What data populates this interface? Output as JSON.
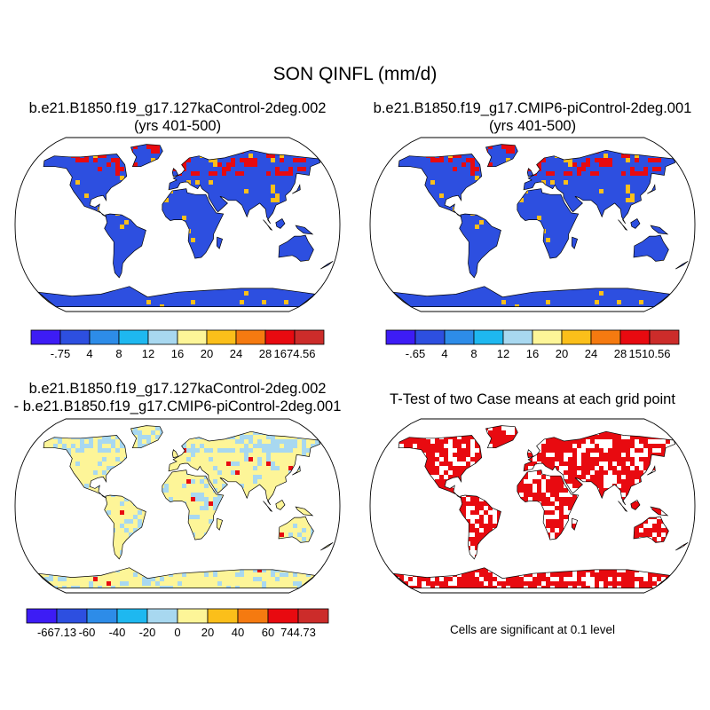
{
  "figure": {
    "title": "SON QINFL (mm/d)",
    "panels": [
      {
        "id": "case1",
        "title_line1": "b.e21.B1850.f19_g17.127kaControl-2deg.002",
        "title_line2": "(yrs 401-500)"
      },
      {
        "id": "case2",
        "title_line1": "b.e21.B1850.f19_g17.CMIP6-piControl-2deg.001",
        "title_line2": "(yrs 401-500)"
      },
      {
        "id": "diff",
        "title_line1": "b.e21.B1850.f19_g17.127kaControl-2deg.002",
        "title_line2": "- b.e21.B1850.f19_g17.CMIP6-piControl-2deg.001"
      },
      {
        "id": "ttest",
        "title_line1": "T-Test of two Case means at each grid point",
        "title_line2": ""
      }
    ],
    "significance_note": "Cells are significant at 0.1 level"
  },
  "colorbars": {
    "case1": {
      "colors": [
        "#3d1cf5",
        "#2d4fe0",
        "#2d8ce8",
        "#1eb8f0",
        "#a8d8f0",
        "#fdf598",
        "#fbbf1a",
        "#f57a10",
        "#e80a10",
        "#cc2c2a"
      ],
      "labels": [
        "-.75",
        "4",
        "8",
        "12",
        "16",
        "20",
        "24",
        "28",
        "1674.56"
      ]
    },
    "case2": {
      "colors": [
        "#3d1cf5",
        "#2d4fe0",
        "#2d8ce8",
        "#1eb8f0",
        "#a8d8f0",
        "#fdf598",
        "#fbbf1a",
        "#f57a10",
        "#e80a10",
        "#cc2c2a"
      ],
      "labels": [
        "-.65",
        "4",
        "8",
        "12",
        "16",
        "20",
        "24",
        "28",
        "1510.56"
      ]
    },
    "diff": {
      "colors": [
        "#3d1cf5",
        "#2d4fe0",
        "#2d8ce8",
        "#1eb8f0",
        "#a8d8f0",
        "#fdf598",
        "#fbbf1a",
        "#f57a10",
        "#e80a10",
        "#cc2c2a"
      ],
      "labels": [
        "-667.13",
        "-60",
        "-40",
        "-20",
        "0",
        "20",
        "40",
        "60",
        "744.73"
      ]
    }
  },
  "map_style": {
    "case_land": "#2d4fe0",
    "case_hotspot": "#e80a10",
    "diff_land": "#fdf598",
    "diff_cool": "#a8d8f0",
    "ttest_land": "#e80a10"
  }
}
